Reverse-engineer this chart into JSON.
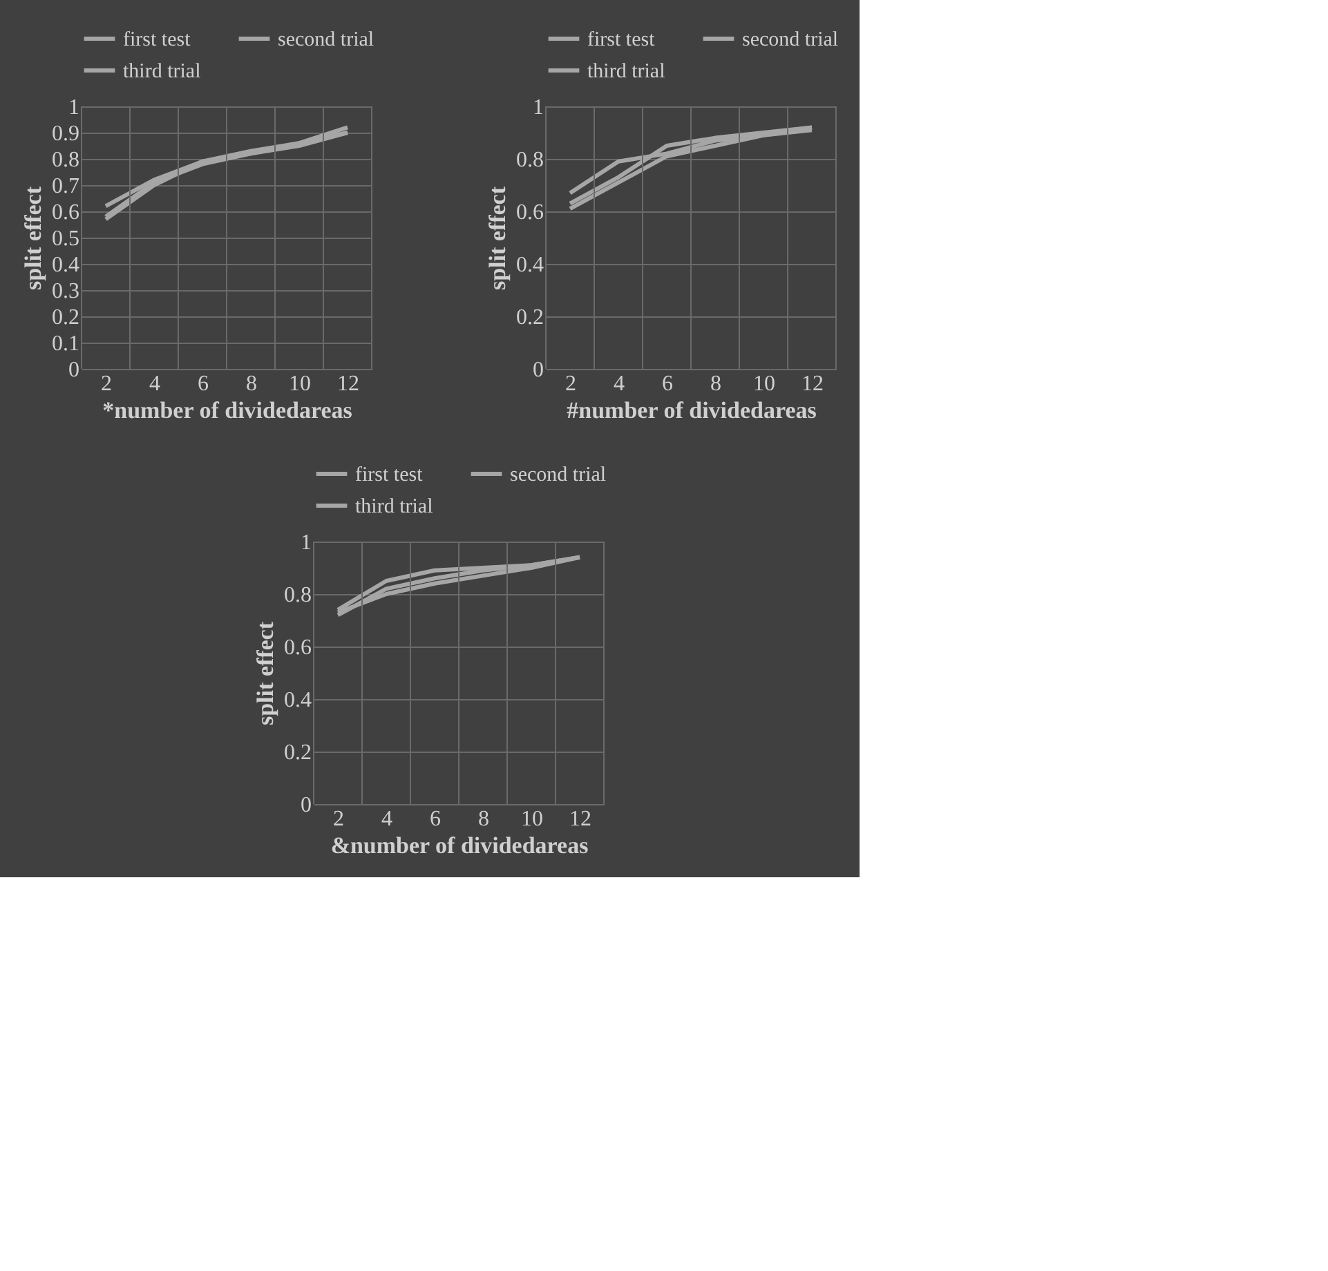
{
  "chart_data": [
    {
      "type": "line",
      "xlabel": "*number of dividedareas",
      "ylabel": "split effect",
      "categories": [
        "2",
        "4",
        "6",
        "8",
        "10",
        "12"
      ],
      "ylim": [
        0,
        1
      ],
      "yticks": [
        0,
        0.1,
        0.2,
        0.3,
        0.4,
        0.5,
        0.6,
        0.7,
        0.8,
        0.9,
        1
      ],
      "grid": true,
      "legend": "top",
      "marker": "none",
      "series": [
        {
          "name": "first test",
          "color": "#a6a6a6",
          "values": [
            0.62,
            0.72,
            0.79,
            0.82,
            0.86,
            0.9
          ]
        },
        {
          "name": "second trial",
          "color": "#a6a6a6",
          "values": [
            0.57,
            0.7,
            0.79,
            0.83,
            0.86,
            0.92
          ]
        },
        {
          "name": "third trial",
          "color": "#a6a6a6",
          "values": [
            0.58,
            0.71,
            0.78,
            0.82,
            0.85,
            0.9
          ]
        }
      ]
    },
    {
      "type": "line",
      "xlabel": "#number of dividedareas",
      "ylabel": "split effect",
      "categories": [
        "2",
        "4",
        "6",
        "8",
        "10",
        "12"
      ],
      "ylim": [
        0,
        1
      ],
      "yticks": [
        0,
        0.2,
        0.4,
        0.6,
        0.8,
        1
      ],
      "grid": true,
      "legend": "top",
      "marker": "none",
      "series": [
        {
          "name": "first test",
          "color": "#a6a6a6",
          "values": [
            0.67,
            0.79,
            0.82,
            0.87,
            0.89,
            0.91
          ]
        },
        {
          "name": "second trial",
          "color": "#a6a6a6",
          "values": [
            0.63,
            0.73,
            0.85,
            0.88,
            0.9,
            0.92
          ]
        },
        {
          "name": "third trial",
          "color": "#a6a6a6",
          "values": [
            0.61,
            0.71,
            0.81,
            0.85,
            0.89,
            0.92
          ]
        }
      ]
    },
    {
      "type": "line",
      "xlabel": "&number of dividedareas",
      "ylabel": "split effect",
      "categories": [
        "2",
        "4",
        "6",
        "8",
        "10",
        "12"
      ],
      "ylim": [
        0,
        1
      ],
      "yticks": [
        0,
        0.2,
        0.4,
        0.6,
        0.8,
        1
      ],
      "grid": true,
      "legend": "top",
      "marker": "none",
      "series": [
        {
          "name": "first test",
          "color": "#a6a6a6",
          "values": [
            0.74,
            0.85,
            0.89,
            0.9,
            0.91,
            0.94
          ]
        },
        {
          "name": "second trial",
          "color": "#a6a6a6",
          "values": [
            0.72,
            0.82,
            0.86,
            0.89,
            0.91,
            0.94
          ]
        },
        {
          "name": "third trial",
          "color": "#a6a6a6",
          "values": [
            0.73,
            0.8,
            0.84,
            0.87,
            0.9,
            0.94
          ]
        }
      ]
    }
  ]
}
